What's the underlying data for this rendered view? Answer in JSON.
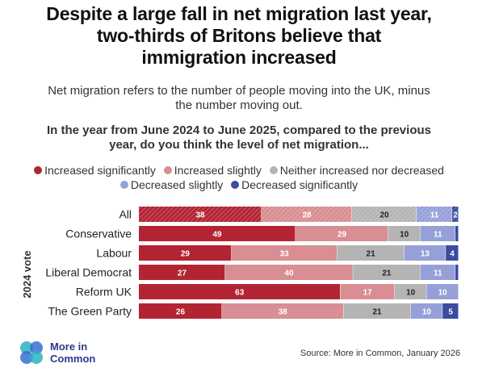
{
  "title_lines": [
    "Despite a large fall in net migration last year,",
    "two-thirds of Britons believe that",
    "immigration increased"
  ],
  "subtitle_lines": [
    "Net migration refers to the number of people moving into the UK, minus",
    "the number moving out."
  ],
  "question_lines": [
    "In the year from June 2024 to June 2025, compared to the previous",
    "year, do you think the level of net migration..."
  ],
  "legend": [
    {
      "label": "Increased significantly",
      "color": "#b32433"
    },
    {
      "label": "Increased slightly",
      "color": "#d88e92"
    },
    {
      "label": "Neither increased nor decreased",
      "color": "#b4b4b4"
    },
    {
      "label": "Decreased slightly",
      "color": "#96a0d8"
    },
    {
      "label": "Decreased significantly",
      "color": "#3c4aa0"
    }
  ],
  "chart_data": {
    "type": "bar",
    "orientation": "horizontal",
    "stacked": true,
    "axis_label": "2024 vote",
    "categories": [
      "All",
      "Conservative",
      "Labour",
      "Liberal Democrat",
      "Reform UK",
      "The Green Party"
    ],
    "series": [
      {
        "name": "Increased significantly",
        "color": "#b32433",
        "values": [
          38,
          49,
          29,
          27,
          63,
          26
        ]
      },
      {
        "name": "Increased slightly",
        "color": "#d88e92",
        "values": [
          28,
          29,
          33,
          40,
          17,
          38
        ]
      },
      {
        "name": "Neither increased nor decreased",
        "color": "#b4b4b4",
        "values": [
          20,
          10,
          21,
          21,
          10,
          21
        ]
      },
      {
        "name": "Decreased slightly",
        "color": "#96a0d8",
        "values": [
          11,
          11,
          13,
          11,
          10,
          10
        ]
      },
      {
        "name": "Decreased significantly",
        "color": "#3c4aa0",
        "values": [
          2,
          1,
          4,
          1,
          0,
          5
        ]
      }
    ],
    "labels_hidden_for": [
      [
        1,
        4
      ],
      [
        3,
        4
      ]
    ],
    "hatched_category": "All",
    "xlim": [
      0,
      100
    ]
  },
  "brand": {
    "line1": "More in",
    "line2": "Common",
    "color": "#2a3a8c"
  },
  "source": "Source: More in Common, January 2026"
}
